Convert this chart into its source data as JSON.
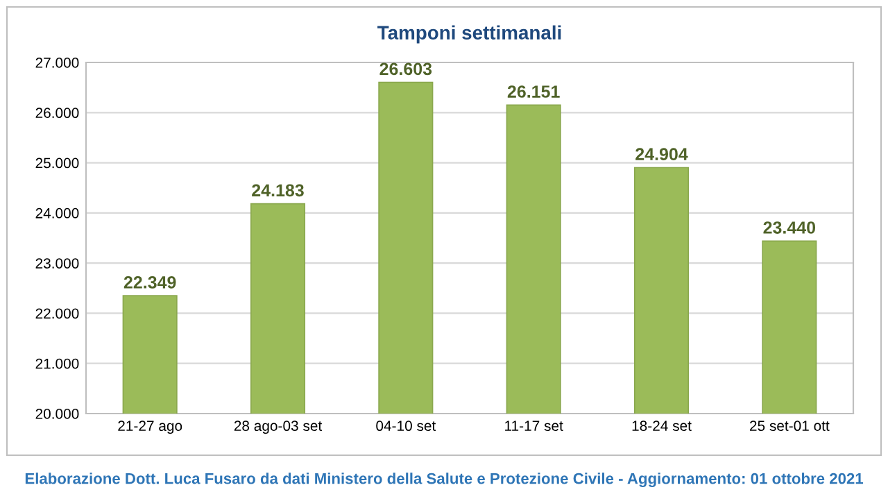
{
  "chart_data": {
    "type": "bar",
    "title": "Tamponi settimanali",
    "categories": [
      "21-27 ago",
      "28 ago-03 set",
      "04-10 set",
      "11-17 set",
      "18-24 set",
      "25 set-01 ott"
    ],
    "values": [
      22349,
      24183,
      26603,
      26151,
      24904,
      23440
    ],
    "value_labels": [
      "22.349",
      "24.183",
      "26.603",
      "26.151",
      "24.904",
      "23.440"
    ],
    "color": "#9bbb59",
    "ylim": [
      20000,
      27000
    ],
    "yticks": [
      {
        "value": 20000,
        "label": "20.000"
      },
      {
        "value": 21000,
        "label": "21.000"
      },
      {
        "value": 22000,
        "label": "22.000"
      },
      {
        "value": 23000,
        "label": "23.000"
      },
      {
        "value": 24000,
        "label": "24.000"
      },
      {
        "value": 25000,
        "label": "25.000"
      },
      {
        "value": 26000,
        "label": "26.000"
      },
      {
        "value": 27000,
        "label": "27.000"
      }
    ],
    "grid": "y",
    "annotations": [
      "Elaborazione Dott. Luca Fusaro da dati Ministero della Salute e Protezione Civile - Aggiornamento: 01 ottobre 2021"
    ]
  }
}
